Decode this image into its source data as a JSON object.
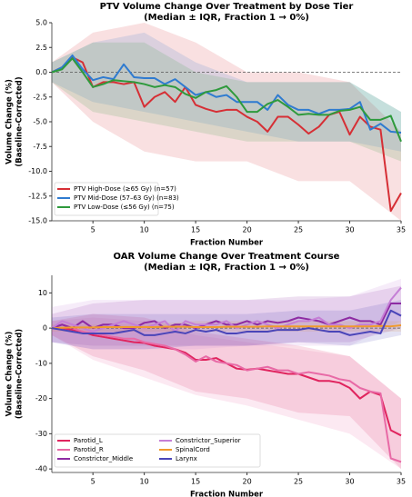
{
  "chart_data": [
    {
      "type": "line",
      "title": "PTV Volume Change Over Treatment by Dose Tier",
      "subtitle": "(Median ± IQR, Fraction 1 → 0%)",
      "xlabel": "Fraction Number",
      "ylabel": [
        "Volume Change (%)",
        "(Baseline-Corrected)"
      ],
      "x": [
        1,
        2,
        3,
        4,
        5,
        6,
        7,
        8,
        9,
        10,
        11,
        12,
        13,
        14,
        15,
        16,
        17,
        18,
        19,
        20,
        21,
        22,
        23,
        24,
        25,
        26,
        27,
        28,
        29,
        30,
        31,
        32,
        33,
        34,
        35
      ],
      "xlim": [
        1,
        35
      ],
      "xticks": [
        5,
        10,
        15,
        20,
        25,
        30,
        35
      ],
      "ylim": [
        -15,
        5
      ],
      "yticks": [
        {
          "value": -15,
          "label": "-15.0"
        },
        -12.5,
        {
          "value": -10,
          "label": "-10.0"
        },
        -7.5,
        {
          "value": -5,
          "label": "-5.0"
        },
        -2.5,
        {
          "value": 0,
          "label": "0.0"
        },
        2.5,
        {
          "value": 5,
          "label": "5.0"
        }
      ],
      "reference_line": 0,
      "legend": "lower left",
      "legend_columns": 1,
      "series": [
        {
          "name": "PTV High-Dose (≥65 Gy) (n=57)",
          "color": "#d62f35",
          "values": [
            0,
            0.5,
            1.5,
            1,
            -1.5,
            -1,
            -1,
            -1.2,
            -1,
            -3.5,
            -2.5,
            -2,
            -3,
            -1.5,
            -3.3,
            -3.7,
            -4,
            -3.8,
            -3.8,
            -4.5,
            -5,
            -6,
            -4.5,
            -4.5,
            -5.3,
            -6.2,
            -5.5,
            -4.3,
            -4,
            -6.3,
            -4.5,
            -5.5,
            -5.8,
            -14,
            -12.2
          ],
          "band": {
            "x": [
              1,
              5,
              10,
              15,
              20,
              25,
              30,
              35
            ],
            "lower": [
              -1,
              -5,
              -8,
              -9,
              -9,
              -11,
              -11,
              -15
            ],
            "upper": [
              1,
              4,
              5,
              3,
              0,
              0,
              -1,
              -6
            ]
          }
        },
        {
          "name": "PTV Mid-Dose (57–63 Gy) (n=83)",
          "color": "#2f7bd0",
          "values": [
            0,
            0.5,
            1.7,
            0.3,
            -0.8,
            -0.5,
            -0.7,
            0.8,
            -0.5,
            -0.6,
            -0.6,
            -1.2,
            -0.7,
            -1.5,
            -2.3,
            -2,
            -2.5,
            -2.3,
            -3,
            -3,
            -3,
            -3.8,
            -2.3,
            -3.3,
            -3.8,
            -3.8,
            -4.2,
            -3.8,
            -3.8,
            -3.7,
            -3,
            -5.8,
            -5.2,
            -6,
            -6.1
          ],
          "band": {
            "x": [
              1,
              5,
              10,
              15,
              20,
              25,
              30,
              35
            ],
            "lower": [
              -1,
              -3,
              -4,
              -5,
              -6,
              -7,
              -7,
              -8
            ],
            "upper": [
              1,
              3,
              4,
              1,
              -1,
              -1,
              -1,
              -4
            ]
          }
        },
        {
          "name": "PTV Low-Dose (≤56 Gy) (n=75)",
          "color": "#2e9a3c",
          "values": [
            0,
            0.3,
            1.4,
            0,
            -1.5,
            -1.2,
            -0.8,
            -0.9,
            -1,
            -1.2,
            -1.5,
            -1.3,
            -1.5,
            -2.2,
            -2.6,
            -2,
            -1.8,
            -1.4,
            -2.5,
            -4,
            -4,
            -3.2,
            -2.8,
            -3.5,
            -4.3,
            -4.2,
            -4.3,
            -4.3,
            -3.9,
            -3.8,
            -3.5,
            -4.8,
            -4.8,
            -4.4,
            -7
          ],
          "band": {
            "x": [
              1,
              5,
              10,
              15,
              20,
              25,
              30,
              35
            ],
            "lower": [
              -1,
              -4,
              -5,
              -6,
              -7,
              -7,
              -7,
              -9
            ],
            "upper": [
              1,
              3,
              3,
              0,
              -1,
              -1,
              -1,
              -4
            ]
          }
        }
      ]
    },
    {
      "type": "line",
      "title": "OAR Volume Change Over Treatment Course",
      "subtitle": "(Median ± IQR, Fraction 1 → 0%)",
      "xlabel": "Fraction Number",
      "ylabel": [
        "Volume Change (%)",
        "(Baseline-Corrected)"
      ],
      "x": [
        1,
        2,
        3,
        4,
        5,
        6,
        7,
        8,
        9,
        10,
        11,
        12,
        13,
        14,
        15,
        16,
        17,
        18,
        19,
        20,
        21,
        22,
        23,
        24,
        25,
        26,
        27,
        28,
        29,
        30,
        31,
        32,
        33,
        34,
        35
      ],
      "xlim": [
        1,
        35
      ],
      "xticks": [
        5,
        10,
        15,
        20,
        25,
        30,
        35
      ],
      "ylim": [
        -41,
        15
      ],
      "yticks": [
        -40,
        -30,
        -20,
        -10,
        0,
        10
      ],
      "reference_line": 0,
      "legend": "lower left",
      "legend_columns": 2,
      "series": [
        {
          "name": "Parotid_L",
          "color": "#e0245e",
          "values": [
            0,
            0,
            -0.5,
            -1,
            -2,
            -2.5,
            -3,
            -3.5,
            -4,
            -4.2,
            -5,
            -5.5,
            -6,
            -7,
            -9,
            -9,
            -8.5,
            -10,
            -11.5,
            -11.8,
            -11.5,
            -12,
            -12.5,
            -13,
            -13,
            -14,
            -15,
            -15,
            -15.5,
            -17,
            -20,
            -18,
            -19,
            -29,
            -30.5
          ],
          "band": {
            "x": [
              1,
              5,
              10,
              15,
              20,
              25,
              30,
              35
            ],
            "lower": [
              -2,
              -8,
              -12,
              -18,
              -20,
              -24,
              -25,
              -40
            ],
            "upper": [
              2,
              4,
              3,
              -1,
              -3,
              -5,
              -8,
              -20
            ]
          }
        },
        {
          "name": "Parotid_R",
          "color": "#e86aa6",
          "values": [
            0,
            1,
            0,
            -1,
            -1.5,
            -2,
            -2.5,
            -3,
            -3,
            -4,
            -4.5,
            -5,
            -6,
            -7.5,
            -9.5,
            -8,
            -9.5,
            -10,
            -10.5,
            -12,
            -11.5,
            -11,
            -12,
            -12,
            -13,
            -12.5,
            -13,
            -13.5,
            -14.5,
            -15,
            -17,
            -18,
            -18.5,
            -37,
            -38
          ],
          "band": {
            "x": [
              1,
              5,
              10,
              15,
              20,
              25,
              30,
              35
            ],
            "lower": [
              -2,
              -9,
              -14,
              -19,
              -22,
              -26,
              -30,
              -40
            ],
            "upper": [
              2,
              3,
              2,
              -2,
              -4,
              -6,
              -8,
              -20
            ]
          }
        },
        {
          "name": "Constrictor_Middle",
          "color": "#8e2ca3",
          "values": [
            0,
            1,
            0,
            2,
            0,
            1,
            1,
            0,
            0,
            1.5,
            2,
            0,
            1,
            1,
            0,
            1,
            2,
            1,
            1,
            2,
            1,
            2,
            1.5,
            2,
            3,
            2.5,
            2,
            1,
            2,
            3,
            2,
            2,
            1,
            7,
            7
          ],
          "band": {
            "x": [
              1,
              5,
              10,
              15,
              20,
              25,
              30,
              35
            ],
            "lower": [
              -4,
              -5,
              -5,
              -5,
              -5,
              -4,
              -4,
              0
            ],
            "upper": [
              4,
              7,
              8,
              8,
              8,
              9,
              9,
              12
            ]
          }
        },
        {
          "name": "Constrictor_Superior",
          "color": "#c57fd6",
          "values": [
            0,
            2,
            1,
            0,
            -1,
            0,
            1,
            2,
            1,
            0,
            1,
            2,
            -1,
            2,
            1,
            1,
            1,
            2,
            0,
            1,
            2,
            1,
            0,
            1,
            2,
            2,
            3,
            1,
            1,
            0,
            1,
            1,
            2,
            8,
            11.5
          ],
          "band": {
            "x": [
              1,
              5,
              10,
              15,
              20,
              25,
              30,
              35
            ],
            "lower": [
              -4,
              -6,
              -6,
              -6,
              -5,
              -5,
              -5,
              2
            ],
            "upper": [
              6,
              8,
              8,
              8,
              8,
              8,
              9,
              14
            ]
          }
        },
        {
          "name": "SpinalCord",
          "color": "#f09a2c",
          "values": [
            0,
            0.1,
            0.2,
            0.2,
            0.2,
            0.3,
            0.3,
            0.3,
            0.3,
            0.3,
            0.3,
            0.4,
            0.4,
            0.4,
            0.3,
            0.3,
            0.3,
            0.4,
            0.4,
            0.4,
            0.4,
            0.5,
            0.5,
            0.5,
            0.5,
            0.5,
            0.5,
            0.5,
            0.5,
            0.5,
            0.5,
            0.5,
            0.6,
            0.5,
            0.8
          ],
          "band": {
            "x": [
              1,
              5,
              10,
              15,
              20,
              25,
              30,
              35
            ],
            "lower": [
              -1,
              -1,
              -1,
              -1,
              -1,
              -1,
              -1,
              -1
            ],
            "upper": [
              1,
              1,
              1,
              2,
              2,
              2,
              2,
              2
            ]
          }
        },
        {
          "name": "Larynx",
          "color": "#4a45b8",
          "values": [
            0,
            -0.5,
            -1,
            -1.5,
            -1.5,
            -1.5,
            -1.5,
            -1,
            -0.5,
            -2,
            -2,
            -1.5,
            -1,
            -1.5,
            -0.5,
            -1,
            -0.5,
            -1.5,
            -1.5,
            -1,
            -1,
            -1,
            -0.5,
            -0.5,
            -0.5,
            0,
            -0.5,
            -1,
            -1,
            -2,
            -1.5,
            -1,
            -1.5,
            5,
            3.5
          ],
          "band": {
            "x": [
              1,
              5,
              10,
              15,
              20,
              25,
              30,
              35
            ],
            "lower": [
              -4,
              -6,
              -6,
              -5,
              -5,
              -4,
              -5,
              -2
            ],
            "upper": [
              3,
              4,
              4,
              4,
              4,
              5,
              5,
              8
            ]
          }
        }
      ]
    }
  ]
}
